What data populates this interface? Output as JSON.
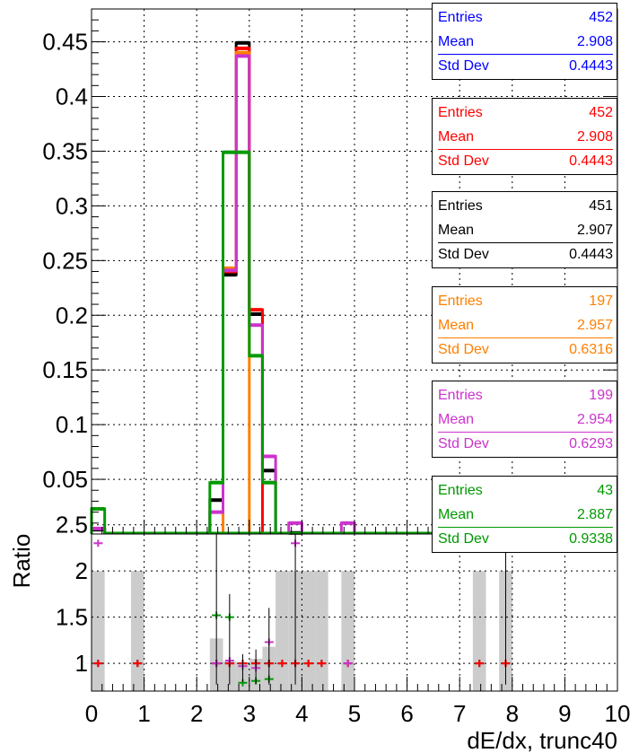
{
  "chart_data": [
    {
      "type": "histogram",
      "title": "",
      "xlabel": "",
      "ylabel": "",
      "xlim": [
        0,
        10
      ],
      "ylim": [
        0,
        0.48
      ],
      "grid": true,
      "bin_width": 0.25,
      "yticks": [
        "0.05",
        "0.1",
        "0.15",
        "0.2",
        "0.25",
        "0.3",
        "0.35",
        "0.4",
        "0.45"
      ],
      "series": [
        {
          "color": "#000000",
          "bins": [
            [
              0.0,
              0.004
            ],
            [
              2.25,
              0.031
            ],
            [
              2.5,
              0.237
            ],
            [
              2.75,
              0.449
            ],
            [
              3.0,
              0.201
            ],
            [
              3.25,
              0.058
            ],
            [
              3.75,
              0.001
            ]
          ],
          "stats": {
            "entries": "451",
            "mean": "2.907",
            "std_dev": "0.4443"
          }
        },
        {
          "color": "#ff0000",
          "bins": [
            [
              2.5,
              0.24
            ],
            [
              2.75,
              0.444
            ],
            [
              3.0,
              0.205
            ]
          ],
          "stats": {
            "entries": "452",
            "mean": "2.908",
            "std_dev": "0.4443"
          }
        },
        {
          "color": "#0000ff",
          "bins": [],
          "stats": {
            "entries": "452",
            "mean": "2.908",
            "std_dev": "0.4443"
          }
        },
        {
          "color": "#ff7f00",
          "bins": [
            [
              2.5,
              0.243
            ],
            [
              2.75,
              0.44
            ]
          ],
          "stats": {
            "entries": "197",
            "mean": "2.957",
            "std_dev": "0.6316"
          }
        },
        {
          "color": "#cc33cc",
          "bins": [
            [
              0.0,
              0.005
            ],
            [
              2.25,
              0.02
            ],
            [
              2.5,
              0.241
            ],
            [
              2.75,
              0.437
            ],
            [
              3.0,
              0.191
            ],
            [
              3.25,
              0.071
            ],
            [
              3.75,
              0.01
            ],
            [
              4.75,
              0.01
            ]
          ],
          "stats": {
            "entries": "199",
            "mean": "2.954",
            "std_dev": "0.6293"
          }
        },
        {
          "color": "#009900",
          "bins": [
            [
              0.0,
              0.023
            ],
            [
              2.25,
              0.047
            ],
            [
              2.5,
              0.349
            ],
            [
              2.75,
              0.349
            ],
            [
              3.0,
              0.163
            ],
            [
              3.25,
              0.047
            ]
          ],
          "stats": {
            "entries": "43",
            "mean": "2.887",
            "std_dev": "0.9338"
          }
        }
      ]
    },
    {
      "type": "scatter",
      "title": "",
      "xlabel": "dE/dx, trunc40",
      "ylabel": "Ratio",
      "xlim": [
        0,
        10
      ],
      "ylim": [
        0.7,
        2.4
      ],
      "grid": true,
      "xticks": [
        "0",
        "1",
        "2",
        "3",
        "4",
        "5",
        "6",
        "7",
        "8",
        "9",
        "10"
      ],
      "yticks": [
        "1",
        "1.5",
        "2",
        "2.5"
      ],
      "uncertainty_bands": [
        [
          0.125,
          2.0
        ],
        [
          0.875,
          2.0
        ],
        [
          2.375,
          1.27
        ],
        [
          2.625,
          1.02
        ],
        [
          2.875,
          1.01
        ],
        [
          3.125,
          1.05
        ],
        [
          3.375,
          1.18
        ],
        [
          3.625,
          2.0
        ],
        [
          3.875,
          2.0
        ],
        [
          4.125,
          2.0
        ],
        [
          4.375,
          2.0
        ],
        [
          4.875,
          2.0
        ],
        [
          7.375,
          2.0
        ],
        [
          7.875,
          2.0
        ]
      ],
      "series": [
        {
          "color": "#000000",
          "x": [
            0.125,
            0.875,
            2.375,
            2.625,
            2.875,
            3.125,
            3.375,
            3.625,
            3.875,
            4.125,
            4.375,
            4.875,
            7.375,
            7.875
          ],
          "y": [
            1.0,
            1.0,
            1.0,
            1.0,
            1.0,
            1.0,
            1.0,
            1.0,
            1.0,
            1.0,
            1.0,
            1.0,
            1.0,
            1.0
          ]
        },
        {
          "color": "#ff0000",
          "x": [
            0.125,
            0.875,
            2.375,
            2.625,
            2.875,
            3.125,
            3.375,
            3.625,
            3.875,
            4.125,
            4.375,
            4.875,
            7.375,
            7.875
          ],
          "y": [
            1.0,
            1.0,
            1.0,
            1.0,
            1.0,
            1.0,
            1.0,
            1.0,
            1.0,
            1.0,
            1.0,
            1.0,
            1.0,
            1.0
          ]
        },
        {
          "color": "#cc33cc",
          "x": [
            0.125,
            2.375,
            2.625,
            2.875,
            3.125,
            3.375,
            3.875,
            4.875,
            7.875
          ],
          "y": [
            2.3,
            1.0,
            1.03,
            0.97,
            0.95,
            1.23,
            2.3,
            1.0,
            2.3
          ]
        },
        {
          "color": "#009900",
          "x": [
            2.375,
            2.625,
            2.875,
            3.125,
            3.375
          ],
          "y": [
            1.52,
            1.5,
            0.79,
            0.81,
            0.83
          ]
        }
      ]
    }
  ]
}
